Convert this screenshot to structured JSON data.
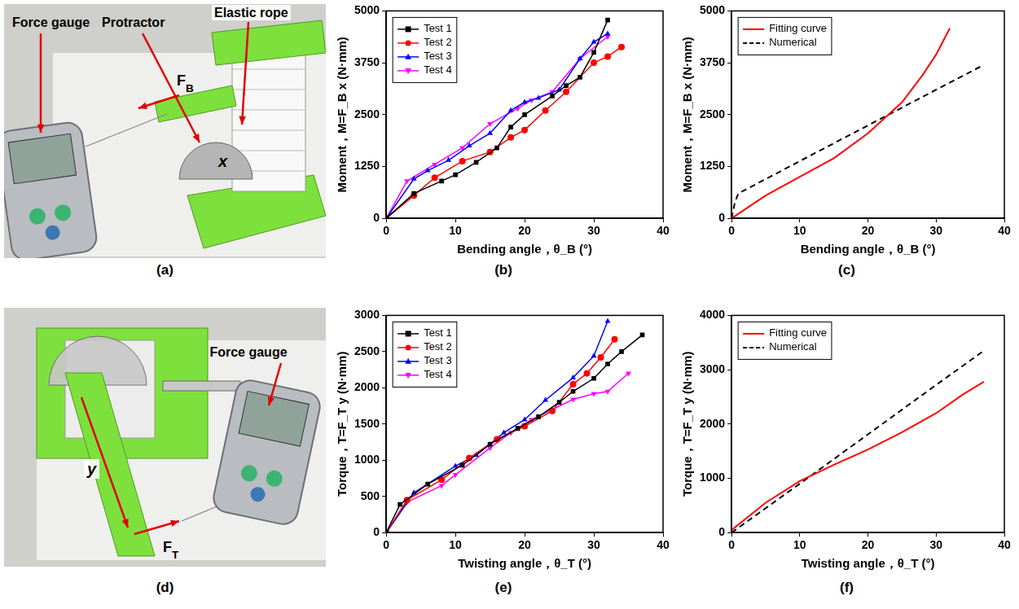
{
  "photos": [
    {
      "caption": "(a)",
      "labels": [
        "Force gauge",
        "Protractor",
        "Elastic rope",
        "F_B",
        "x"
      ]
    },
    {
      "caption": "(d)",
      "labels": [
        "Force gauge",
        "y",
        "F_T"
      ]
    }
  ],
  "chart_data": [
    {
      "type": "line",
      "caption": "(b)",
      "x_label": "Bending angle，θ_B (°)",
      "y_label": "Moment，M=F_B x (N·mm)",
      "xlim": [
        0,
        40
      ],
      "xticks": [
        0,
        10,
        20,
        30,
        40
      ],
      "ylim": [
        0,
        5000
      ],
      "yticks": [
        0,
        1250,
        2500,
        3750,
        5000
      ],
      "grid": false,
      "legend": "upper left",
      "series": [
        {
          "name": "Test 1",
          "color": "#000000",
          "marker": "square",
          "line_style": "solid",
          "x": [
            0,
            4,
            8,
            10,
            13,
            16,
            18,
            20,
            24,
            26,
            28,
            30,
            32
          ],
          "values": [
            0,
            600,
            900,
            1050,
            1350,
            1700,
            2200,
            2500,
            2950,
            3200,
            3400,
            4000,
            4780
          ]
        },
        {
          "name": "Test 2",
          "color": "#ff0000",
          "marker": "circle",
          "line_style": "solid",
          "x": [
            0,
            4,
            7,
            11,
            15,
            18,
            20,
            23,
            26,
            30,
            32,
            34
          ],
          "values": [
            0,
            550,
            980,
            1380,
            1600,
            1950,
            2130,
            2600,
            3050,
            3750,
            3900,
            4130
          ]
        },
        {
          "name": "Test 3",
          "color": "#0000ff",
          "marker": "triangle",
          "line_style": "solid",
          "x": [
            0,
            4,
            6,
            9,
            12,
            15,
            18,
            20,
            22,
            25,
            28,
            30,
            32
          ],
          "values": [
            0,
            950,
            1150,
            1400,
            1750,
            2050,
            2600,
            2800,
            2900,
            3100,
            3850,
            4250,
            4450
          ]
        },
        {
          "name": "Test 4",
          "color": "#ff00ff",
          "marker": "triangle_down",
          "line_style": "solid",
          "x": [
            0,
            3,
            7,
            11,
            15,
            19,
            21,
            24,
            28,
            32
          ],
          "values": [
            0,
            900,
            1300,
            1700,
            2280,
            2650,
            2850,
            3050,
            3850,
            4380
          ]
        }
      ]
    },
    {
      "type": "line",
      "caption": "(c)",
      "x_label": "Bending angle，θ_B (°)",
      "y_label": "Moment，M=F_B x (N·mm)",
      "xlim": [
        0,
        40
      ],
      "xticks": [
        0,
        10,
        20,
        30,
        40
      ],
      "ylim": [
        0,
        5000
      ],
      "yticks": [
        0,
        1250,
        2500,
        3750,
        5000
      ],
      "grid": false,
      "legend": "upper left",
      "series": [
        {
          "name": "Fitting curve",
          "color": "#ff0000",
          "marker": "none",
          "line_style": "solid",
          "x": [
            0,
            5,
            10,
            15,
            20,
            25,
            28,
            30,
            32
          ],
          "values": [
            0,
            550,
            1000,
            1450,
            2050,
            2800,
            3450,
            3950,
            4580
          ]
        },
        {
          "name": "Numerical",
          "color": "#000000",
          "marker": "none",
          "line_style": "dashed",
          "x": [
            0,
            0.5,
            1,
            10,
            20,
            30,
            37
          ],
          "values": [
            0,
            400,
            600,
            1380,
            2240,
            3100,
            3700
          ]
        }
      ]
    },
    {
      "type": "line",
      "caption": "(e)",
      "x_label": "Twisting angle，θ_T (°)",
      "y_label": "Torque，T=F_T y (N·mm)",
      "xlim": [
        0,
        40
      ],
      "xticks": [
        0,
        10,
        20,
        30,
        40
      ],
      "ylim": [
        0,
        3000
      ],
      "yticks": [
        0,
        500,
        1000,
        1500,
        2000,
        2500,
        3000
      ],
      "grid": false,
      "legend": "upper left",
      "series": [
        {
          "name": "Test 1",
          "color": "#000000",
          "marker": "square",
          "line_style": "solid",
          "x": [
            0,
            2,
            6,
            11,
            15,
            19,
            22,
            25,
            27,
            30,
            32,
            34,
            37
          ],
          "values": [
            0,
            390,
            670,
            930,
            1220,
            1440,
            1600,
            1800,
            1950,
            2130,
            2330,
            2500,
            2730
          ]
        },
        {
          "name": "Test 2",
          "color": "#ff0000",
          "marker": "circle",
          "line_style": "solid",
          "x": [
            0,
            3,
            8,
            12,
            16,
            20,
            24,
            27,
            29,
            31,
            33
          ],
          "values": [
            0,
            450,
            730,
            1030,
            1290,
            1470,
            1680,
            2050,
            2200,
            2420,
            2670
          ]
        },
        {
          "name": "Test 3",
          "color": "#0000ff",
          "marker": "triangle",
          "line_style": "solid",
          "x": [
            0,
            4,
            10,
            13,
            17,
            20,
            23,
            27,
            30,
            32
          ],
          "values": [
            0,
            550,
            920,
            1070,
            1380,
            1560,
            1830,
            2140,
            2440,
            2920
          ]
        },
        {
          "name": "Test 4",
          "color": "#ff00ff",
          "marker": "triangle_down",
          "line_style": "solid",
          "x": [
            0,
            3,
            8,
            10,
            15,
            18,
            21,
            24,
            27,
            30,
            32,
            35
          ],
          "values": [
            0,
            420,
            650,
            800,
            1170,
            1380,
            1560,
            1700,
            1840,
            1920,
            1950,
            2200
          ]
        }
      ]
    },
    {
      "type": "line",
      "caption": "(f)",
      "x_label": "Twisting angle，θ_T (°)",
      "y_label": "Torque，T=F_T y (N·mm)",
      "xlim": [
        0,
        40
      ],
      "xticks": [
        0,
        10,
        20,
        30,
        40
      ],
      "ylim": [
        0,
        4000
      ],
      "yticks": [
        0,
        1000,
        2000,
        3000,
        4000
      ],
      "grid": false,
      "legend": "upper left",
      "series": [
        {
          "name": "Fitting curve",
          "color": "#ff0000",
          "marker": "none",
          "line_style": "solid",
          "x": [
            0,
            5,
            10,
            15,
            20,
            25,
            30,
            34,
            37
          ],
          "values": [
            50,
            550,
            950,
            1250,
            1530,
            1850,
            2200,
            2550,
            2780
          ]
        },
        {
          "name": "Numerical",
          "color": "#000000",
          "marker": "none",
          "line_style": "dashed",
          "x": [
            0,
            10,
            20,
            30,
            37
          ],
          "values": [
            0,
            900,
            1810,
            2720,
            3350
          ]
        }
      ]
    }
  ]
}
